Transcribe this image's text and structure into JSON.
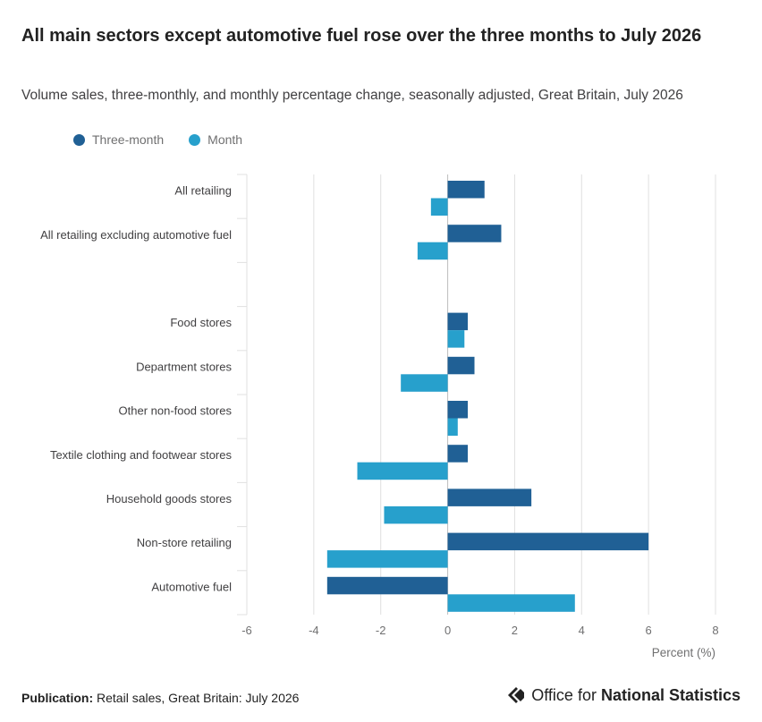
{
  "header": {
    "title": "All main sectors except automotive fuel rose over the three months to July 2026",
    "subtitle": "Volume sales, three-monthly, and monthly percentage change, seasonally adjusted, Great Britain, July 2026"
  },
  "colors": {
    "three_month": "#206095",
    "month": "#27a0cc",
    "grid": "#e0e0e0",
    "axis": "#bebebe"
  },
  "chart_data": {
    "type": "bar",
    "orientation": "horizontal",
    "categories": [
      "All retailing",
      "All retailing excluding automotive fuel",
      "",
      "Food stores",
      "Department stores",
      "Other non-food stores",
      "Textile clothing and footwear stores",
      "Household goods stores",
      "Non-store retailing",
      "Automotive fuel"
    ],
    "series": [
      {
        "name": "Three-month",
        "values": [
          1.1,
          1.6,
          null,
          0.6,
          0.8,
          0.6,
          0.6,
          2.5,
          6.0,
          -3.6
        ]
      },
      {
        "name": "Month",
        "values": [
          -0.5,
          -0.9,
          null,
          0.5,
          -1.4,
          0.3,
          -2.7,
          -1.9,
          -3.6,
          3.8
        ]
      }
    ],
    "xlim": [
      -6,
      8
    ],
    "xticks": [
      "-6",
      "-4",
      "-2",
      "0",
      "2",
      "4",
      "6",
      "8"
    ],
    "xlabel": "Percent (%)",
    "ylabel": "",
    "legend_position": "top-left",
    "grid": true
  },
  "footer": {
    "publication_label": "Publication:",
    "publication_text": "Retail sales, Great Britain: July 2026"
  },
  "logo": {
    "text_regular": "Office for",
    "text_bold": "National Statistics"
  }
}
